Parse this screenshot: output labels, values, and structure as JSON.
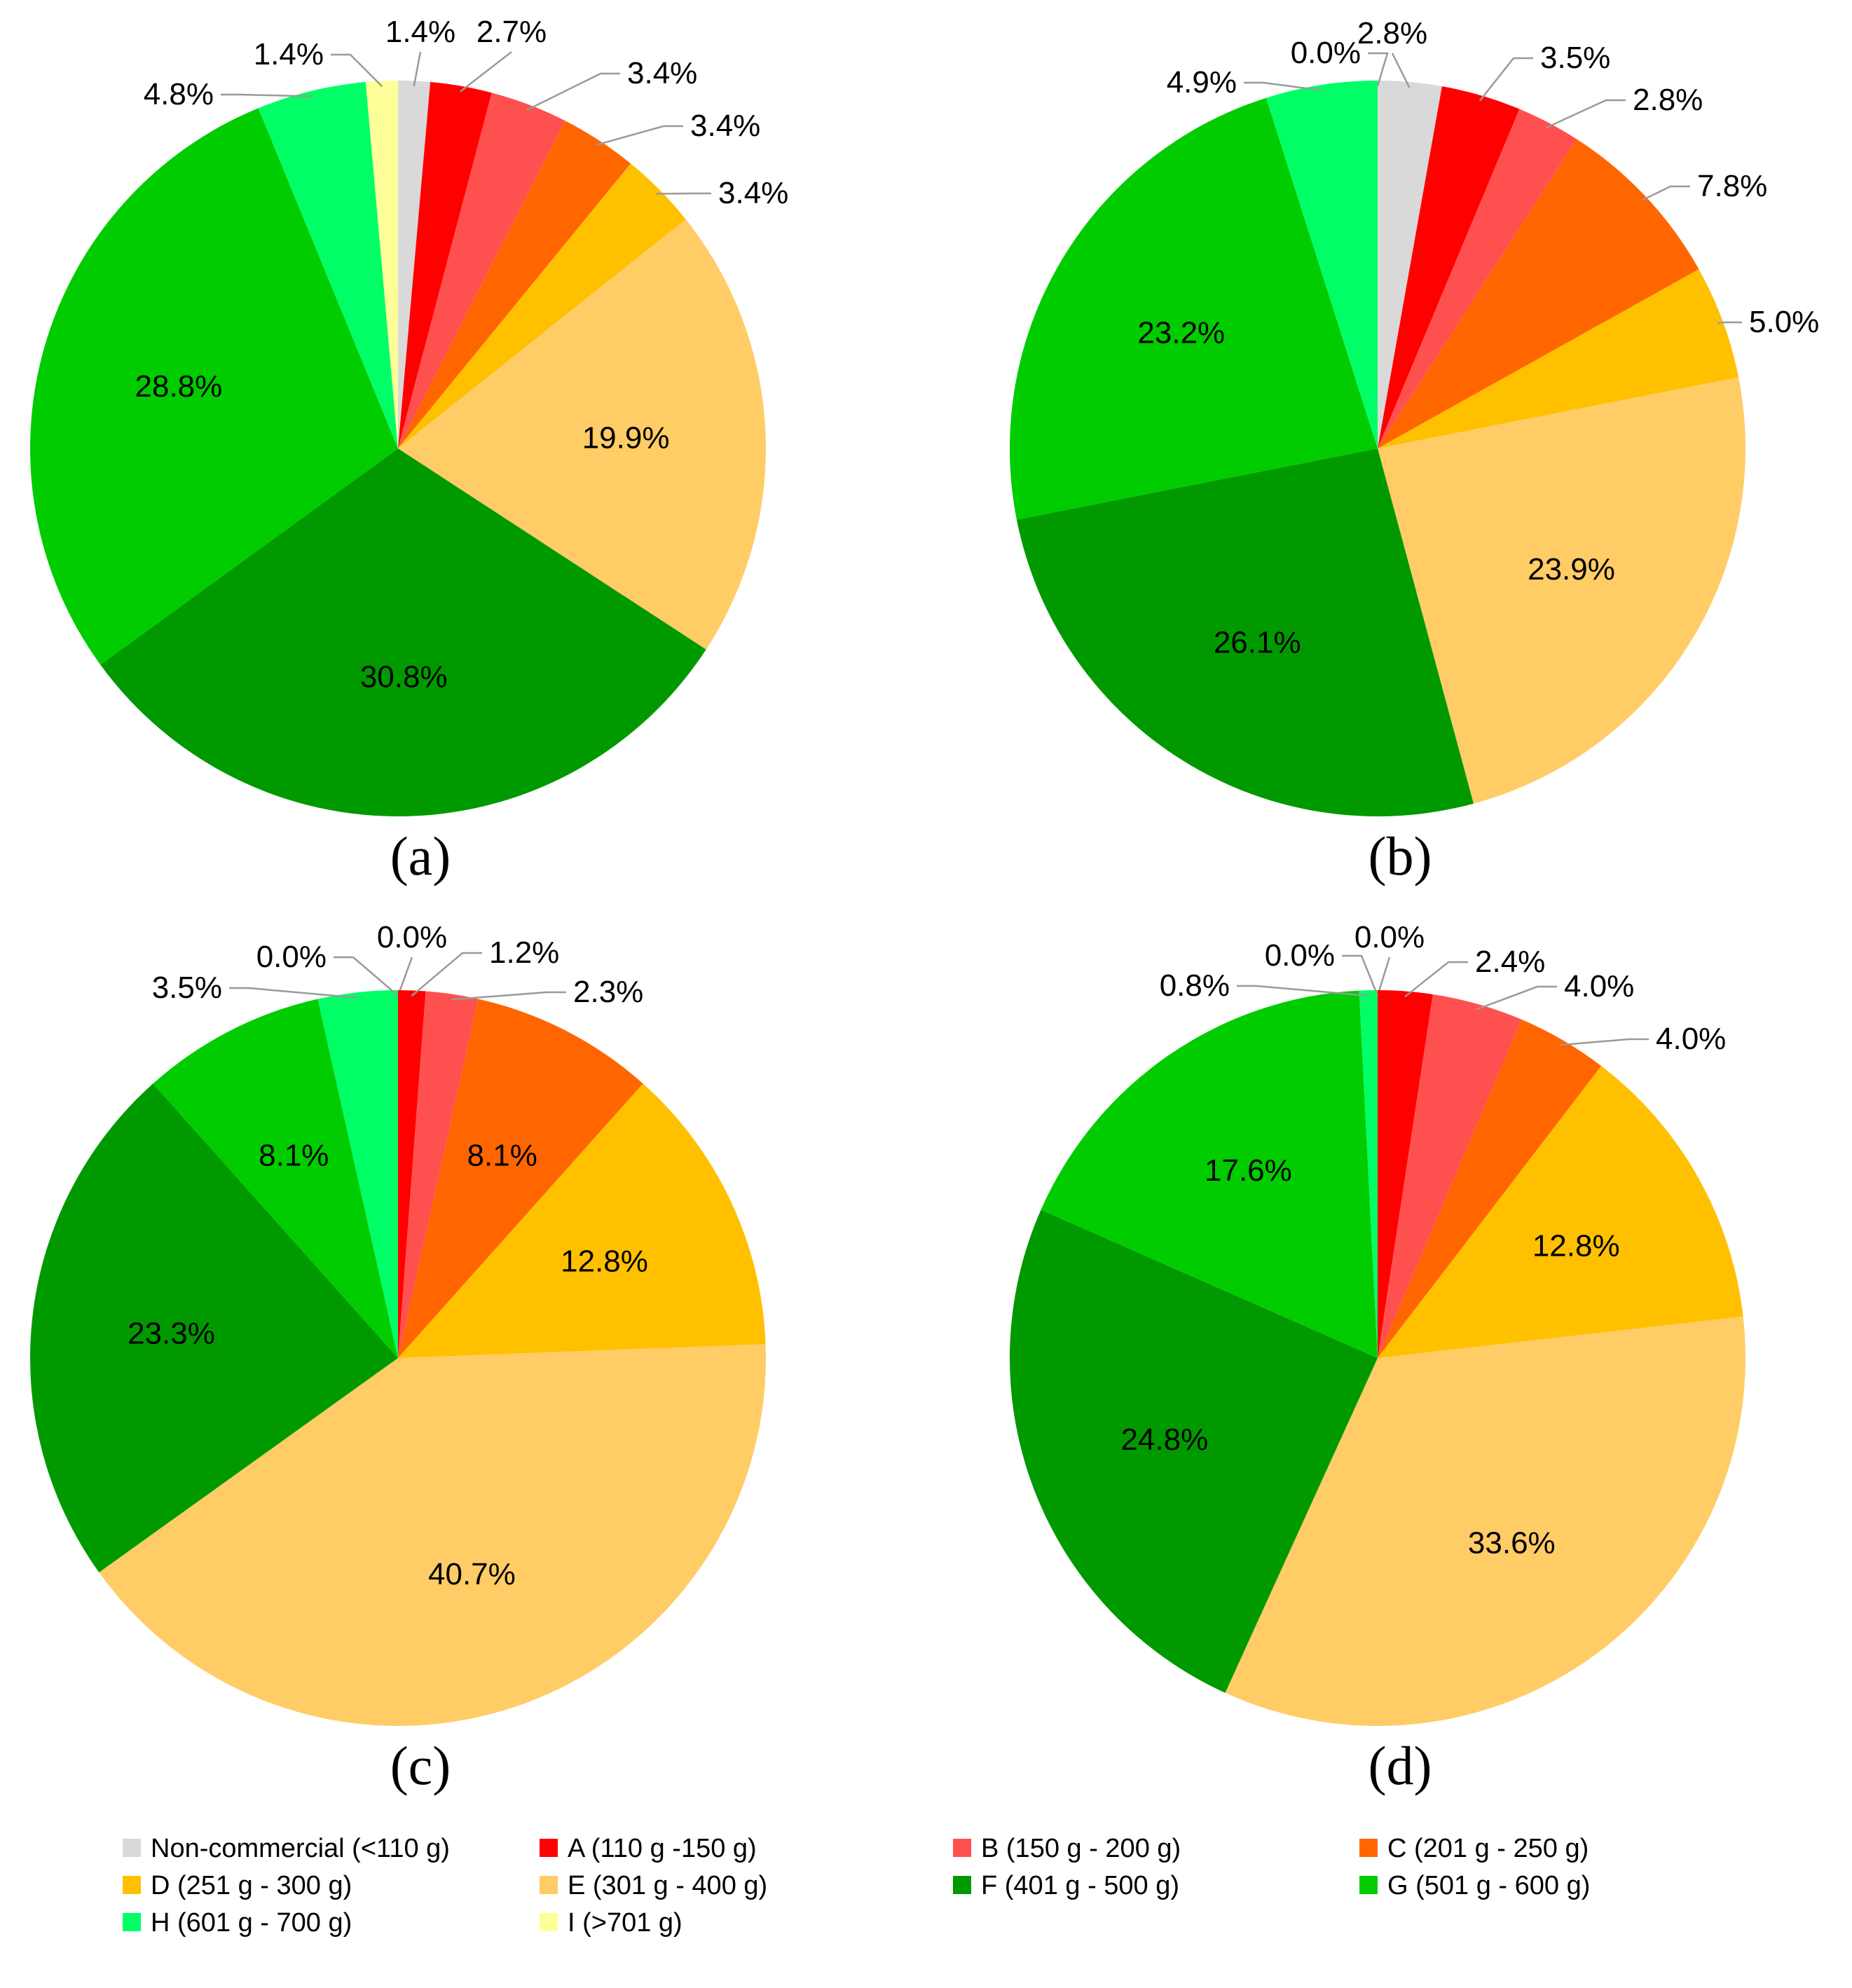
{
  "chart_data": [
    {
      "type": "pie",
      "panel_label": "(a)",
      "categories": [
        "Non-commercial (<110 g)",
        "A (110 g -150 g)",
        "B (150 g - 200 g)",
        "C (201 g - 250 g)",
        "D (251 g - 300 g)",
        "E (301 g - 400 g)",
        "F (401 g - 500 g)",
        "G (501 g - 600 g)",
        "H (601 g - 700 g)",
        "I (>701 g)"
      ],
      "values": [
        1.4,
        2.7,
        3.4,
        3.4,
        3.4,
        19.9,
        30.8,
        28.8,
        4.8,
        1.4
      ],
      "labels": [
        "1.4%",
        "2.7%",
        "3.4%",
        "3.4%",
        "3.4%",
        "19.9%",
        "30.8%",
        "28.8%",
        "4.8%",
        "1.4%"
      ]
    },
    {
      "type": "pie",
      "panel_label": "(b)",
      "categories": [
        "Non-commercial (<110 g)",
        "A (110 g -150 g)",
        "B (150 g - 200 g)",
        "C (201 g - 250 g)",
        "D (251 g - 300 g)",
        "E (301 g - 400 g)",
        "F (401 g - 500 g)",
        "G (501 g - 600 g)",
        "H (601 g - 700 g)",
        "I (>701 g)"
      ],
      "values": [
        2.8,
        3.5,
        2.8,
        7.8,
        5.0,
        23.9,
        26.1,
        23.2,
        4.9,
        0.0
      ],
      "labels": [
        "2.8%",
        "3.5%",
        "2.8%",
        "7.8%",
        "5.0%",
        "23.9%",
        "26.1%",
        "23.2%",
        "4.9%",
        "0.0%"
      ]
    },
    {
      "type": "pie",
      "panel_label": "(c)",
      "categories": [
        "Non-commercial (<110 g)",
        "A (110 g -150 g)",
        "B (150 g - 200 g)",
        "C (201 g - 250 g)",
        "D (251 g - 300 g)",
        "E (301 g - 400 g)",
        "F (401 g - 500 g)",
        "G (501 g - 600 g)",
        "H (601 g - 700 g)",
        "I (>701 g)"
      ],
      "values": [
        0.0,
        1.2,
        2.3,
        8.1,
        12.8,
        40.7,
        23.3,
        8.1,
        3.5,
        0.0
      ],
      "labels": [
        "0.0%",
        "1.2%",
        "2.3%",
        "8.1%",
        "12.8%",
        "40.7%",
        "23.3%",
        "8.1%",
        "3.5%",
        "0.0%"
      ]
    },
    {
      "type": "pie",
      "panel_label": "(d)",
      "categories": [
        "Non-commercial (<110 g)",
        "A (110 g -150 g)",
        "B (150 g - 200 g)",
        "C (201 g - 250 g)",
        "D (251 g - 300 g)",
        "E (301 g - 400 g)",
        "F (401 g - 500 g)",
        "G (501 g - 600 g)",
        "H (601 g - 700 g)",
        "I (>701 g)"
      ],
      "values": [
        0.0,
        2.4,
        4.0,
        4.0,
        12.8,
        33.6,
        24.8,
        17.6,
        0.8,
        0.0
      ],
      "labels": [
        "0.0%",
        "2.4%",
        "4.0%",
        "4.0%",
        "12.8%",
        "33.6%",
        "24.8%",
        "17.6%",
        "0.8%",
        "0.0%"
      ]
    }
  ],
  "legend": {
    "entries": [
      {
        "label": "Non-commercial (<110 g)",
        "color": "#d9d9d9"
      },
      {
        "label": "A (110 g -150 g)",
        "color": "#ff0000"
      },
      {
        "label": "B (150 g - 200 g)",
        "color": "#ff5050"
      },
      {
        "label": "C (201 g - 250 g)",
        "color": "#ff6600"
      },
      {
        "label": "D (251 g - 300 g)",
        "color": "#ffc000"
      },
      {
        "label": "E (301 g - 400 g)",
        "color": "#ffcc66"
      },
      {
        "label": "F (401 g - 500 g)",
        "color": "#009900"
      },
      {
        "label": "G (501 g - 600 g)",
        "color": "#00cc00"
      },
      {
        "label": "H (601 g - 700 g)",
        "color": "#00ff66"
      },
      {
        "label": "I (>701 g)",
        "color": "#ffff99"
      }
    ]
  }
}
